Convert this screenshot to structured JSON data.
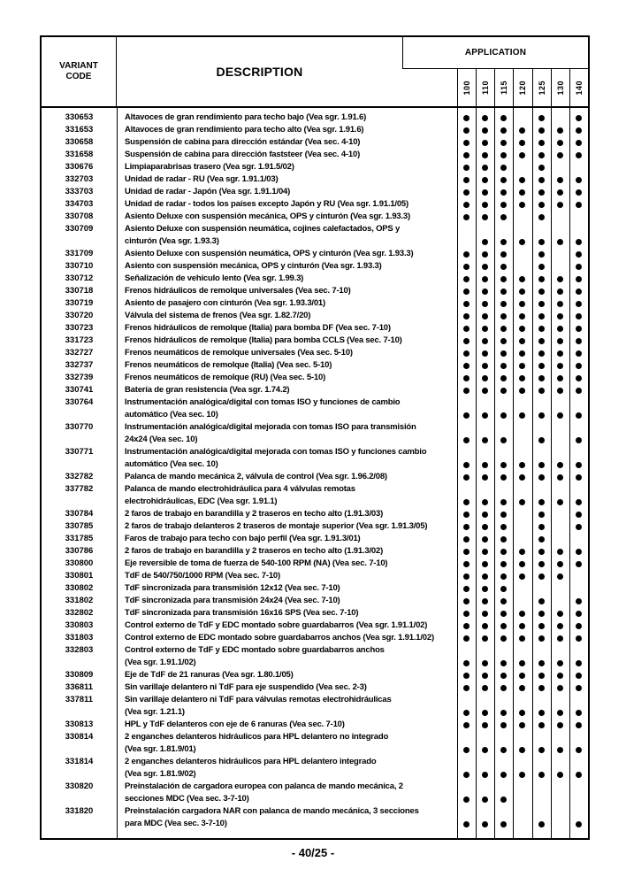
{
  "page": {
    "footer_label": "- 40/25 -"
  },
  "table": {
    "header": {
      "variant_code": "VARIANT CODE",
      "description": "DESCRIPTION",
      "application": "APPLICATION"
    },
    "columns": [
      "100",
      "110",
      "115",
      "120",
      "125",
      "130",
      "140"
    ],
    "rows": [
      {
        "code": "330653",
        "lines": [
          "Altavoces de gran rendimiento para techo bajo (Vea sgr. 1.91.6)"
        ],
        "marks": [
          1,
          1,
          1,
          0,
          1,
          0,
          1
        ]
      },
      {
        "code": "331653",
        "lines": [
          "Altavoces de gran rendimiento para techo alto (Vea sgr. 1.91.6)"
        ],
        "marks": [
          1,
          1,
          1,
          1,
          1,
          1,
          1
        ]
      },
      {
        "code": "330658",
        "lines": [
          "Suspensión de cabina para dirección estándar (Vea sec. 4-10)"
        ],
        "marks": [
          1,
          1,
          1,
          1,
          1,
          1,
          1
        ]
      },
      {
        "code": "331658",
        "lines": [
          "Suspensión de cabina para dirección faststeer (Vea sec. 4-10)"
        ],
        "marks": [
          1,
          1,
          1,
          1,
          1,
          1,
          1
        ]
      },
      {
        "code": "330676",
        "lines": [
          "Limpiaparabrisas trasero (Vea sgr. 1.91.5/02)"
        ],
        "marks": [
          1,
          1,
          1,
          0,
          1,
          0,
          0
        ]
      },
      {
        "code": "332703",
        "lines": [
          "Unidad de radar - RU (Vea sgr. 1.91.1/03)"
        ],
        "marks": [
          1,
          1,
          1,
          1,
          1,
          1,
          1
        ]
      },
      {
        "code": "333703",
        "lines": [
          "Unidad de radar - Japón (Vea sgr. 1.91.1/04)"
        ],
        "marks": [
          1,
          1,
          1,
          1,
          1,
          1,
          1
        ]
      },
      {
        "code": "334703",
        "lines": [
          "Unidad de radar - todos los países excepto Japón y RU (Vea sgr. 1.91.1/05)"
        ],
        "marks": [
          1,
          1,
          1,
          1,
          1,
          1,
          1
        ]
      },
      {
        "code": "330708",
        "lines": [
          "Asiento Deluxe con suspensión mecánica, OPS y cinturón (Vea sgr. 1.93.3)"
        ],
        "marks": [
          1,
          1,
          1,
          0,
          1,
          0,
          0
        ]
      },
      {
        "code": "330709",
        "lines": [
          "Asiento Deluxe con suspensión neumática, cojines calefactados, OPS y",
          "cinturón (Vea sgr. 1.93.3)"
        ],
        "marks": [
          0,
          1,
          1,
          1,
          1,
          1,
          1
        ]
      },
      {
        "code": "331709",
        "lines": [
          "Asiento Deluxe con suspensión neumática, OPS y cinturón (Vea sgr. 1.93.3)"
        ],
        "marks": [
          1,
          1,
          1,
          0,
          1,
          0,
          1
        ]
      },
      {
        "code": "330710",
        "lines": [
          "Asiento con suspensión mecánica, OPS y cinturón (Vea sgr. 1.93.3)"
        ],
        "marks": [
          1,
          1,
          1,
          0,
          1,
          0,
          1
        ]
      },
      {
        "code": "330712",
        "lines": [
          "Señalización de vehículo lento (Vea sgr. 1.99.3)"
        ],
        "marks": [
          1,
          1,
          1,
          1,
          1,
          1,
          1
        ]
      },
      {
        "code": "330718",
        "lines": [
          "Frenos hidráulicos de remolque universales (Vea sec. 7-10)"
        ],
        "marks": [
          1,
          1,
          1,
          1,
          1,
          1,
          1
        ]
      },
      {
        "code": "330719",
        "lines": [
          "Asiento de pasajero con cinturón (Vea sgr. 1.93.3/01)"
        ],
        "marks": [
          1,
          1,
          1,
          1,
          1,
          1,
          1
        ]
      },
      {
        "code": "330720",
        "lines": [
          "Válvula del sistema de frenos (Vea sgr. 1.82.7/20)"
        ],
        "marks": [
          1,
          1,
          1,
          1,
          1,
          1,
          1
        ]
      },
      {
        "code": "330723",
        "lines": [
          "Frenos hidráulicos de remolque (Italia) para bomba DF (Vea sec. 7-10)"
        ],
        "marks": [
          1,
          1,
          1,
          1,
          1,
          1,
          1
        ]
      },
      {
        "code": "331723",
        "lines": [
          "Frenos hidráulicos de remolque (Italia) para bomba CCLS (Vea sec. 7-10)"
        ],
        "marks": [
          1,
          1,
          1,
          1,
          1,
          1,
          1
        ]
      },
      {
        "code": "332727",
        "lines": [
          "Frenos neumáticos de remolque universales (Vea sec. 5-10)"
        ],
        "marks": [
          1,
          1,
          1,
          1,
          1,
          1,
          1
        ]
      },
      {
        "code": "332737",
        "lines": [
          "Frenos neumáticos de remolque (Italia) (Vea sec. 5-10)"
        ],
        "marks": [
          1,
          1,
          1,
          1,
          1,
          1,
          1
        ]
      },
      {
        "code": "332739",
        "lines": [
          "Frenos neumáticos de remolque (RU) (Vea sec. 5-10)"
        ],
        "marks": [
          1,
          1,
          1,
          1,
          1,
          1,
          1
        ]
      },
      {
        "code": "330741",
        "lines": [
          "Batería de gran resistencia (Vea sgr. 1.74.2)"
        ],
        "marks": [
          1,
          1,
          1,
          1,
          1,
          1,
          1
        ]
      },
      {
        "code": "330764",
        "lines": [
          "Instrumentación analógica/digital con tomas ISO y funciones de cambio",
          "automático (Vea sec. 10)"
        ],
        "marks": [
          1,
          1,
          1,
          1,
          1,
          1,
          1
        ]
      },
      {
        "code": "330770",
        "lines": [
          "Instrumentación analógica/digital mejorada con tomas ISO para transmisión",
          "24x24 (Vea sec. 10)"
        ],
        "marks": [
          1,
          1,
          1,
          0,
          1,
          0,
          1
        ]
      },
      {
        "code": "330771",
        "lines": [
          "Instrumentación analógica/digital mejorada con tomas ISO y funciones cambio",
          "automático (Vea sec. 10)"
        ],
        "marks": [
          1,
          1,
          1,
          1,
          1,
          1,
          1
        ]
      },
      {
        "code": "332782",
        "lines": [
          "Palanca de mando mecánica 2, válvula de control (Vea sgr. 1.96.2/08)"
        ],
        "marks": [
          1,
          1,
          1,
          1,
          1,
          1,
          1
        ]
      },
      {
        "code": "337782",
        "lines": [
          "Palanca de mando electrohidráulica para 4 válvulas remotas",
          "electrohidráulicas, EDC (Vea sgr. 1.91.1)"
        ],
        "marks": [
          1,
          1,
          1,
          1,
          1,
          1,
          1
        ]
      },
      {
        "code": "330784",
        "lines": [
          "2 faros de trabajo en barandilla y 2 traseros en techo alto (1.91.3/03)"
        ],
        "marks": [
          1,
          1,
          1,
          0,
          1,
          0,
          1
        ]
      },
      {
        "code": "330785",
        "lines": [
          "2 faros de trabajo delanteros 2 traseros de montaje superior (Vea sgr. 1.91.3/05)"
        ],
        "marks": [
          1,
          1,
          1,
          0,
          1,
          0,
          1
        ]
      },
      {
        "code": "331785",
        "lines": [
          "Faros de trabajo para techo con bajo perfil (Vea sgr. 1.91.3/01)"
        ],
        "marks": [
          1,
          1,
          1,
          0,
          1,
          0,
          0
        ]
      },
      {
        "code": "330786",
        "lines": [
          "2 faros de trabajo en barandilla y 2 traseros en techo alto (1.91.3/02)"
        ],
        "marks": [
          1,
          1,
          1,
          1,
          1,
          1,
          1
        ]
      },
      {
        "code": "330800",
        "lines": [
          "Eje reversible de toma de fuerza de 540-100 RPM (NA) (Vea sec. 7-10)"
        ],
        "marks": [
          1,
          1,
          1,
          1,
          1,
          1,
          1
        ]
      },
      {
        "code": "330801",
        "lines": [
          "TdF de 540/750/1000 RPM (Vea sec. 7-10)"
        ],
        "marks": [
          1,
          1,
          1,
          1,
          1,
          1,
          0
        ]
      },
      {
        "code": "330802",
        "lines": [
          "TdF sincronizada para transmisión 12x12 (Vea sec. 7-10)"
        ],
        "marks": [
          1,
          1,
          1,
          0,
          0,
          0,
          0
        ]
      },
      {
        "code": "331802",
        "lines": [
          "TdF sincronizada para transmisión 24x24 (Vea sec. 7-10)"
        ],
        "marks": [
          1,
          1,
          1,
          0,
          1,
          0,
          1
        ]
      },
      {
        "code": "332802",
        "lines": [
          "TdF sincronizada para transmisión 16x16 SPS (Vea sec. 7-10)"
        ],
        "marks": [
          1,
          1,
          1,
          1,
          1,
          1,
          1
        ]
      },
      {
        "code": "330803",
        "lines": [
          "Control externo de TdF y EDC montado sobre guardabarros (Vea sgr. 1.91.1/02)"
        ],
        "marks": [
          1,
          1,
          1,
          1,
          1,
          1,
          1
        ]
      },
      {
        "code": "331803",
        "lines": [
          "Control externo de EDC montado sobre guardabarros anchos (Vea sgr. 1.91.1/02)"
        ],
        "marks": [
          1,
          1,
          1,
          1,
          1,
          1,
          1
        ]
      },
      {
        "code": "332803",
        "lines": [
          "Control externo de TdF y EDC montado sobre guardabarros anchos",
          "(Vea sgr. 1.91.1/02)"
        ],
        "marks": [
          1,
          1,
          1,
          1,
          1,
          1,
          1
        ]
      },
      {
        "code": "330809",
        "lines": [
          "Eje de TdF de 21 ranuras (Vea sgr. 1.80.1/05)"
        ],
        "marks": [
          1,
          1,
          1,
          1,
          1,
          1,
          1
        ]
      },
      {
        "code": "336811",
        "lines": [
          "Sin varillaje delantero ni TdF para eje suspendido (Vea sec. 2-3)"
        ],
        "marks": [
          1,
          1,
          1,
          1,
          1,
          1,
          1
        ]
      },
      {
        "code": "337811",
        "lines": [
          "Sin varillaje delantero ni TdF para válvulas remotas electrohidráulicas",
          "(Vea sgr. 1.21.1)"
        ],
        "marks": [
          1,
          1,
          1,
          1,
          1,
          1,
          1
        ]
      },
      {
        "code": "330813",
        "lines": [
          "HPL y TdF delanteros con eje de 6 ranuras (Vea sec. 7-10)"
        ],
        "marks": [
          1,
          1,
          1,
          1,
          1,
          1,
          1
        ]
      },
      {
        "code": "330814",
        "lines": [
          "2 enganches delanteros hidráulicos para HPL delantero no integrado",
          "(Vea sgr. 1.81.9/01)"
        ],
        "marks": [
          1,
          1,
          1,
          1,
          1,
          1,
          1
        ]
      },
      {
        "code": "331814",
        "lines": [
          "2 enganches delanteros hidráulicos para HPL delantero integrado",
          "(Vea sgr. 1.81.9/02)"
        ],
        "marks": [
          1,
          1,
          1,
          1,
          1,
          1,
          1
        ]
      },
      {
        "code": "330820",
        "lines": [
          "Preinstalación de cargadora europea con palanca de mando mecánica, 2",
          "secciones MDC (Vea sec. 3-7-10)"
        ],
        "marks": [
          1,
          1,
          1,
          0,
          0,
          0,
          0
        ]
      },
      {
        "code": "331820",
        "lines": [
          "Preinstalación cargadora NAR con palanca de mando mecánica, 3 secciones",
          "para MDC (Vea sec. 3-7-10)"
        ],
        "marks": [
          1,
          1,
          1,
          0,
          1,
          0,
          1
        ]
      }
    ]
  }
}
